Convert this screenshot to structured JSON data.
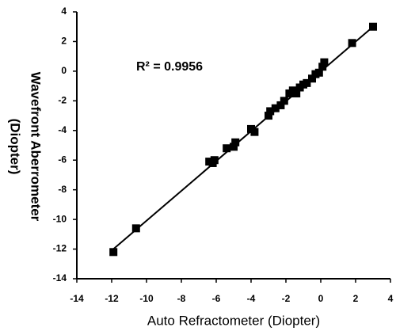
{
  "chart_data": {
    "type": "scatter",
    "xlabel": "Auto Refractometer (Diopter)",
    "ylabel": [
      "Wavefront Aberrometer",
      "(Diopter)"
    ],
    "annotation": "R² = 0.9956",
    "color": "#000000",
    "x": [
      -11.9,
      -10.6,
      -6.4,
      -6.2,
      -6.1,
      -5.4,
      -5.0,
      -4.9,
      -4.0,
      -3.8,
      -3.0,
      -2.9,
      -2.6,
      -2.3,
      -2.1,
      -1.8,
      -1.6,
      -1.4,
      -1.2,
      -1.0,
      -0.8,
      -0.5,
      -0.3,
      -0.1,
      0.1,
      0.2,
      1.8,
      3.0
    ],
    "values": [
      -12.2,
      -10.6,
      -6.1,
      -6.2,
      -6.0,
      -5.2,
      -5.1,
      -4.8,
      -3.9,
      -4.1,
      -3.0,
      -2.7,
      -2.5,
      -2.3,
      -2.0,
      -1.5,
      -1.3,
      -1.5,
      -1.1,
      -0.9,
      -0.8,
      -0.5,
      -0.2,
      -0.1,
      0.3,
      0.6,
      1.9,
      3.0
    ],
    "fit_line": {
      "x": [
        -12,
        3
      ],
      "y": [
        -12.1,
        3
      ]
    },
    "xlim": [
      -14,
      4
    ],
    "xticks": [
      -14,
      -12,
      -10,
      -8,
      -6,
      -4,
      -2,
      0,
      2,
      4
    ],
    "ylim": [
      -14,
      4
    ],
    "yticks": [
      -14,
      -12,
      -10,
      -8,
      -6,
      -4,
      -2,
      0,
      2,
      4
    ]
  }
}
